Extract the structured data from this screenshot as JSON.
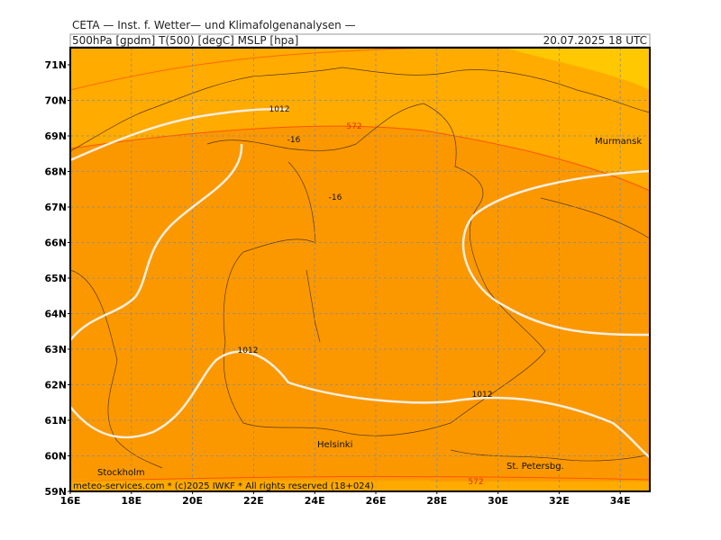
{
  "header": {
    "title": "CETA — Inst. f. Wetter— und Klimafolgenanalysen —",
    "params": "500hPa [gpdm] T(500) [degC] MSLP [hpa]",
    "datetime": "20.07.2025 18 UTC"
  },
  "lat_labels": [
    "71N",
    "70N",
    "69N",
    "68N",
    "67N",
    "66N",
    "65N",
    "64N",
    "63N",
    "62N",
    "61N",
    "60N",
    "59N"
  ],
  "lon_labels": [
    "16E",
    "18E",
    "20E",
    "22E",
    "24E",
    "26E",
    "28E",
    "30E",
    "32E",
    "34E"
  ],
  "places": [
    "Murmansk",
    "Helsinki",
    "Stockholm",
    "St. Petersbg."
  ],
  "contour_labels": [
    "1012",
    "572",
    "-16",
    "-16",
    "1012",
    "1012",
    "572"
  ],
  "footer": "meteo-services.com * (c)2025 IWKF * All rights reserved (18+024)"
}
